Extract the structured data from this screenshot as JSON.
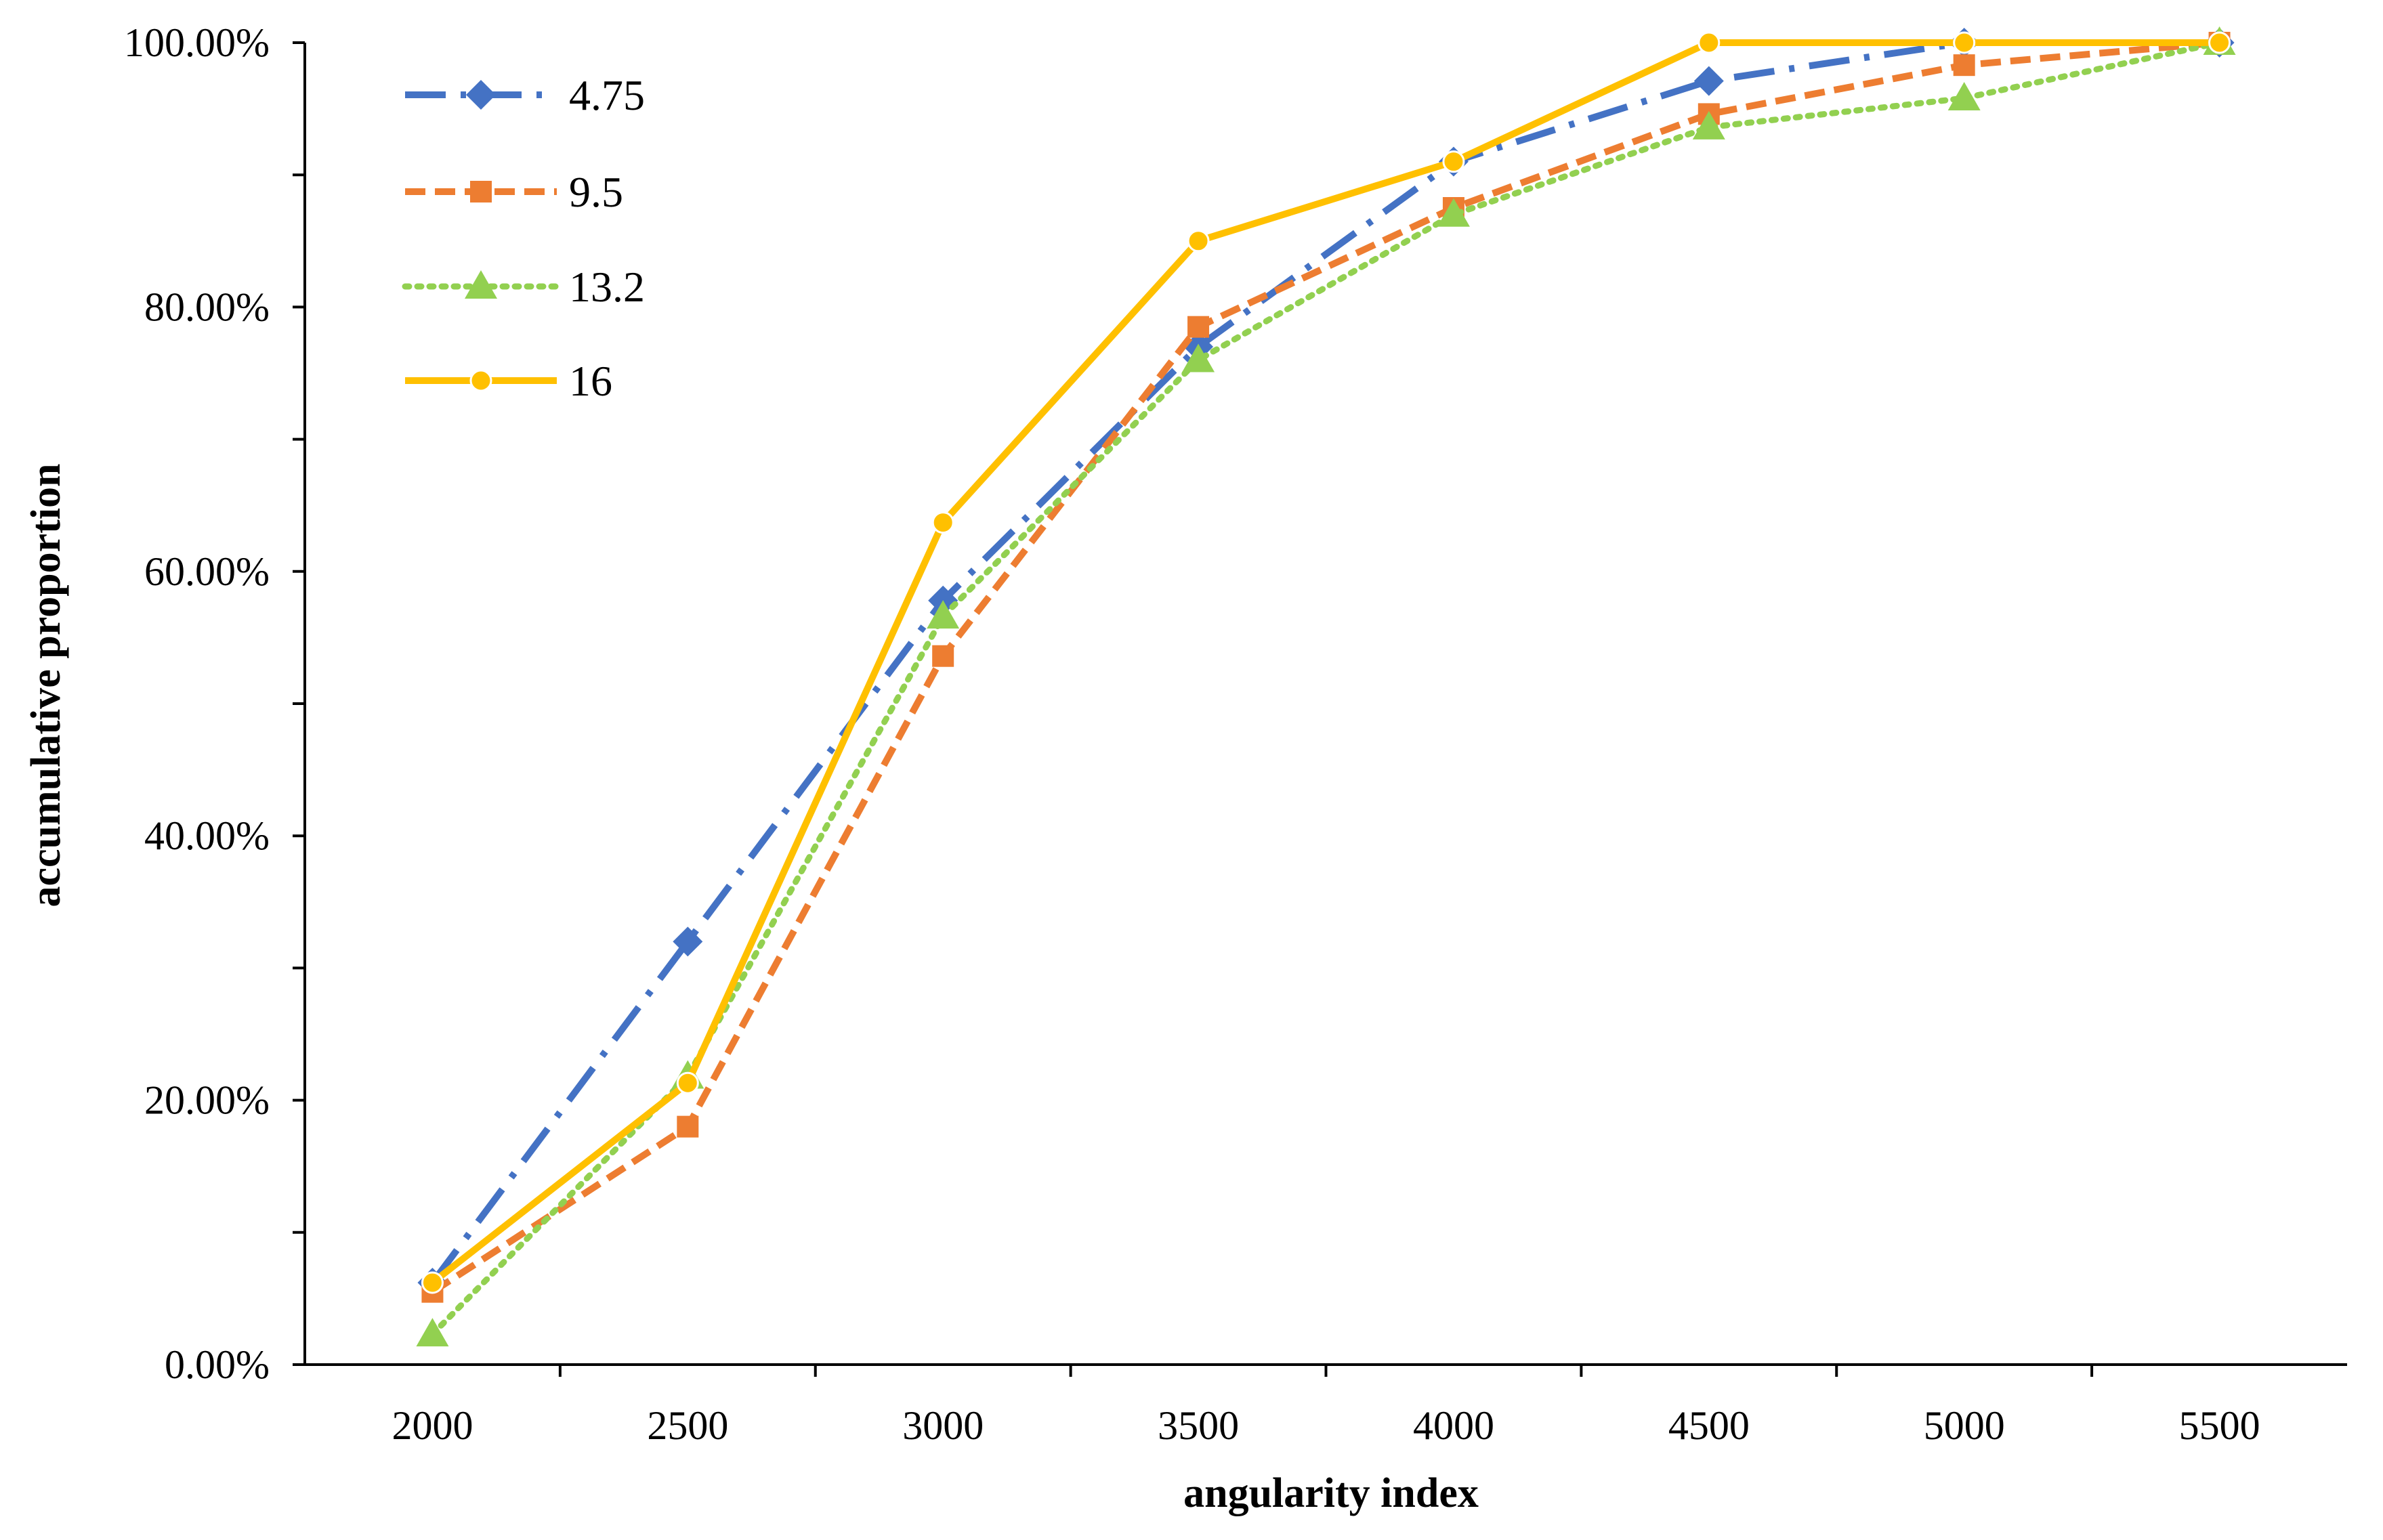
{
  "chart_data": {
    "type": "line",
    "title": "",
    "xlabel": "angularity index",
    "ylabel": "accumulative proportion",
    "categories": [
      "2000",
      "2500",
      "3000",
      "3500",
      "4000",
      "4500",
      "5000",
      "5500"
    ],
    "ylim": [
      0,
      100
    ],
    "y_tick_values": [
      0,
      20,
      40,
      60,
      80,
      100
    ],
    "y_tick_labels": [
      "0.00%",
      "20.00%",
      "40.00%",
      "60.00%",
      "80.00%",
      "100.00%"
    ],
    "grid": false,
    "legend_position": "top-left",
    "series": [
      {
        "name": "4.75",
        "values": [
          6.2,
          32.0,
          57.8,
          77.0,
          91.0,
          97.1,
          100.0,
          100.0
        ],
        "color": "#4472C4",
        "marker": "diamond",
        "line_style": "dash-dot"
      },
      {
        "name": "9.5",
        "values": [
          5.5,
          18.0,
          53.6,
          78.5,
          87.5,
          94.6,
          98.3,
          100.0
        ],
        "color": "#ED7D31",
        "marker": "square",
        "line_style": "dashed"
      },
      {
        "name": "13.2",
        "values": [
          2.3,
          21.8,
          56.6,
          76.0,
          87.0,
          93.6,
          95.8,
          100.0
        ],
        "color": "#92D050",
        "marker": "triangle",
        "line_style": "dotted"
      },
      {
        "name": "16",
        "values": [
          6.2,
          21.3,
          63.7,
          85.0,
          91.0,
          100.0,
          100.0,
          100.0
        ],
        "color": "#FFC000",
        "marker": "circle",
        "line_style": "solid"
      }
    ]
  }
}
